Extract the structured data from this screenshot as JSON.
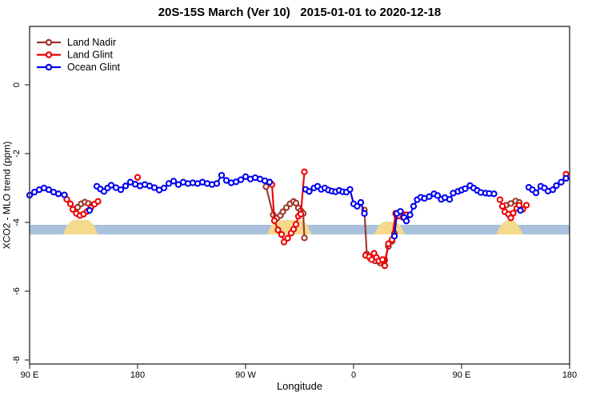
{
  "title": "20S-15S March (Ver 10)   2015-01-01 to 2020-12-18",
  "legend": {
    "items": [
      {
        "label": "Land Nadir",
        "color": "#9E3528"
      },
      {
        "label": "Land Glint",
        "color": "#EE0000"
      },
      {
        "label": "Ocean Glint",
        "color": "#0000EE"
      }
    ]
  },
  "chart_data": {
    "type": "line",
    "title": "20S-15S March (Ver 10)   2015-01-01 to 2020-12-18",
    "xlabel": "Longitude",
    "ylabel": "XCO2 - MLO trend (ppm)",
    "x_note": "longitude axis spans 450 degrees eastward: 90E, 180, 90W, 0, 90E, 180; series x stored as extended degrees 90..540",
    "xlim": [
      90,
      540
    ],
    "ylim": [
      -8.2,
      1.7
    ],
    "grid": false,
    "legend_position": "top-left",
    "x_ticks": [
      {
        "x": 90,
        "label": "90 E"
      },
      {
        "x": 180,
        "label": "180"
      },
      {
        "x": 270,
        "label": "90 W"
      },
      {
        "x": 360,
        "label": "0"
      },
      {
        "x": 450,
        "label": "90 E"
      },
      {
        "x": 540,
        "label": "180"
      }
    ],
    "y_ticks": [
      {
        "v": 0,
        "label": "0"
      },
      {
        "v": -2,
        "label": "-2"
      },
      {
        "v": -4,
        "label": "-4"
      },
      {
        "v": -6,
        "label": "-6"
      },
      {
        "v": -8,
        "label": "-8"
      }
    ],
    "band": {
      "y0": -4.07,
      "y1": -4.35,
      "color": "#A9C1DC"
    },
    "yellow_regions": [
      {
        "x0": 118,
        "x1": 147,
        "top": -3.93,
        "color": "#F5D98C"
      },
      {
        "x0": 288,
        "x1": 325,
        "top": -3.93,
        "color": "#F5D98C"
      },
      {
        "x0": 377,
        "x1": 403,
        "top": -3.98,
        "color": "#F5D98C"
      },
      {
        "x0": 479,
        "x1": 501,
        "top": -3.95,
        "color": "#F5D98C"
      }
    ],
    "series": [
      {
        "name": "Land Nadir",
        "color": "#9E3528",
        "segments": [
          [
            [
              130,
              -3.56
            ],
            [
              133,
              -3.46
            ],
            [
              136,
              -3.41
            ],
            [
              139,
              -3.45
            ],
            [
              142,
              -3.5
            ]
          ],
          [
            [
              287,
              -2.96
            ],
            [
              293,
              -3.78
            ],
            [
              296,
              -3.88
            ],
            [
              299,
              -3.8
            ],
            [
              301,
              -3.69
            ],
            [
              304,
              -3.57
            ],
            [
              307,
              -3.46
            ],
            [
              310,
              -3.39
            ],
            [
              312,
              -3.44
            ],
            [
              314,
              -3.58
            ],
            [
              316,
              -3.66
            ],
            [
              318,
              -3.74
            ],
            [
              319,
              -4.45
            ]
          ],
          [
            [
              369,
              -3.64
            ],
            [
              371,
              -4.92
            ],
            [
              374,
              -5.05
            ],
            [
              378,
              -5.12
            ],
            [
              382,
              -5.18
            ],
            [
              386,
              -5.1
            ],
            [
              389,
              -4.7
            ],
            [
              392,
              -4.55
            ],
            [
              394,
              -4.32
            ],
            [
              396,
              -3.82
            ],
            [
              399,
              -3.74
            ],
            [
              402,
              -3.78
            ]
          ],
          [
            [
              487,
              -3.5
            ],
            [
              491,
              -3.45
            ],
            [
              495,
              -3.38
            ],
            [
              498,
              -3.42
            ]
          ]
        ]
      },
      {
        "name": "Land Glint",
        "color": "#EE0000",
        "segments": [
          [
            [
              121,
              -3.33
            ],
            [
              124,
              -3.46
            ],
            [
              126,
              -3.62
            ],
            [
              129,
              -3.74
            ],
            [
              132,
              -3.8
            ],
            [
              135,
              -3.76
            ],
            [
              138,
              -3.68
            ],
            [
              141,
              -3.57
            ],
            [
              144,
              -3.47
            ],
            [
              147,
              -3.39
            ]
          ],
          [
            [
              180,
              -2.69
            ]
          ],
          [
            [
              290,
              -2.83
            ],
            [
              292,
              -2.9
            ],
            [
              294,
              -3.95
            ],
            [
              297,
              -4.22
            ],
            [
              300,
              -4.35
            ],
            [
              302,
              -4.57
            ],
            [
              305,
              -4.46
            ],
            [
              308,
              -4.31
            ],
            [
              310,
              -4.2
            ],
            [
              312,
              -4.06
            ],
            [
              314,
              -3.82
            ],
            [
              316,
              -3.76
            ],
            [
              319,
              -2.53
            ]
          ],
          [
            [
              370,
              -4.96
            ],
            [
              373,
              -5.0
            ],
            [
              375,
              -5.08
            ],
            [
              377,
              -4.9
            ],
            [
              379,
              -5.02
            ],
            [
              381,
              -5.12
            ],
            [
              384,
              -5.08
            ],
            [
              386,
              -5.26
            ],
            [
              389,
              -4.62
            ],
            [
              392,
              -4.5
            ],
            [
              395,
              -3.74
            ],
            [
              398,
              -3.81
            ],
            [
              401,
              -3.85
            ],
            [
              404,
              -3.78
            ]
          ],
          [
            [
              482,
              -3.34
            ],
            [
              484,
              -3.53
            ],
            [
              486,
              -3.69
            ],
            [
              489,
              -3.76
            ],
            [
              491,
              -3.87
            ],
            [
              493,
              -3.73
            ],
            [
              496,
              -3.59
            ],
            [
              498,
              -3.5
            ],
            [
              501,
              -3.62
            ],
            [
              504,
              -3.5
            ]
          ],
          [
            [
              537,
              -2.6
            ]
          ]
        ]
      },
      {
        "name": "Ocean Glint",
        "color": "#0000EE",
        "segments": [
          [
            [
              90,
              -3.21
            ],
            [
              94,
              -3.12
            ],
            [
              98,
              -3.05
            ],
            [
              102,
              -3.0
            ],
            [
              106,
              -3.05
            ],
            [
              110,
              -3.12
            ],
            [
              114,
              -3.17
            ],
            [
              119,
              -3.2
            ]
          ],
          [
            [
              140,
              -3.65
            ]
          ],
          [
            [
              146,
              -2.95
            ],
            [
              149,
              -3.03
            ],
            [
              152,
              -3.1
            ],
            [
              155,
              -3.0
            ],
            [
              158,
              -2.92
            ],
            [
              162,
              -2.99
            ],
            [
              166,
              -3.05
            ],
            [
              170,
              -2.94
            ],
            [
              174,
              -2.83
            ],
            [
              178,
              -2.89
            ],
            [
              182,
              -2.94
            ],
            [
              186,
              -2.9
            ],
            [
              190,
              -2.94
            ],
            [
              194,
              -2.99
            ],
            [
              198,
              -3.06
            ],
            [
              202,
              -3.0
            ],
            [
              206,
              -2.87
            ],
            [
              210,
              -2.8
            ],
            [
              214,
              -2.9
            ],
            [
              218,
              -2.83
            ],
            [
              222,
              -2.87
            ],
            [
              226,
              -2.85
            ],
            [
              230,
              -2.87
            ],
            [
              234,
              -2.83
            ],
            [
              238,
              -2.87
            ],
            [
              242,
              -2.9
            ],
            [
              246,
              -2.87
            ],
            [
              250,
              -2.63
            ],
            [
              254,
              -2.78
            ],
            [
              258,
              -2.85
            ],
            [
              262,
              -2.82
            ],
            [
              266,
              -2.76
            ],
            [
              270,
              -2.67
            ],
            [
              274,
              -2.74
            ],
            [
              278,
              -2.7
            ],
            [
              282,
              -2.74
            ],
            [
              286,
              -2.79
            ],
            [
              290,
              -2.83
            ]
          ],
          [
            [
              320,
              -3.04
            ],
            [
              323,
              -3.1
            ],
            [
              327,
              -3.0
            ],
            [
              330,
              -2.95
            ],
            [
              333,
              -3.04
            ],
            [
              336,
              -3.0
            ],
            [
              339,
              -3.06
            ],
            [
              342,
              -3.09
            ],
            [
              345,
              -3.11
            ],
            [
              348,
              -3.07
            ],
            [
              351,
              -3.11
            ],
            [
              354,
              -3.12
            ],
            [
              357,
              -3.04
            ],
            [
              360,
              -3.46
            ],
            [
              363,
              -3.53
            ],
            [
              366,
              -3.42
            ],
            [
              369,
              -3.74
            ]
          ],
          [
            [
              394,
              -4.4
            ],
            [
              396,
              -3.74
            ],
            [
              399,
              -3.68
            ],
            [
              402,
              -3.86
            ],
            [
              404,
              -3.96
            ],
            [
              407,
              -3.78
            ],
            [
              410,
              -3.53
            ],
            [
              413,
              -3.34
            ],
            [
              416,
              -3.27
            ],
            [
              419,
              -3.3
            ],
            [
              423,
              -3.25
            ],
            [
              427,
              -3.17
            ],
            [
              430,
              -3.22
            ],
            [
              433,
              -3.33
            ],
            [
              436,
              -3.28
            ],
            [
              440,
              -3.33
            ],
            [
              443,
              -3.15
            ],
            [
              447,
              -3.1
            ],
            [
              450,
              -3.06
            ],
            [
              453,
              -3.02
            ],
            [
              457,
              -2.93
            ],
            [
              460,
              -3.0
            ],
            [
              463,
              -3.07
            ],
            [
              466,
              -3.13
            ],
            [
              470,
              -3.15
            ],
            [
              473,
              -3.16
            ],
            [
              477,
              -3.17
            ]
          ],
          [
            [
              499,
              -3.65
            ]
          ],
          [
            [
              506,
              -2.98
            ],
            [
              509,
              -3.05
            ],
            [
              512,
              -3.14
            ],
            [
              516,
              -2.95
            ],
            [
              519,
              -3.0
            ],
            [
              522,
              -3.09
            ],
            [
              526,
              -3.05
            ],
            [
              529,
              -2.93
            ],
            [
              533,
              -2.83
            ],
            [
              537,
              -2.72
            ]
          ]
        ]
      }
    ]
  }
}
